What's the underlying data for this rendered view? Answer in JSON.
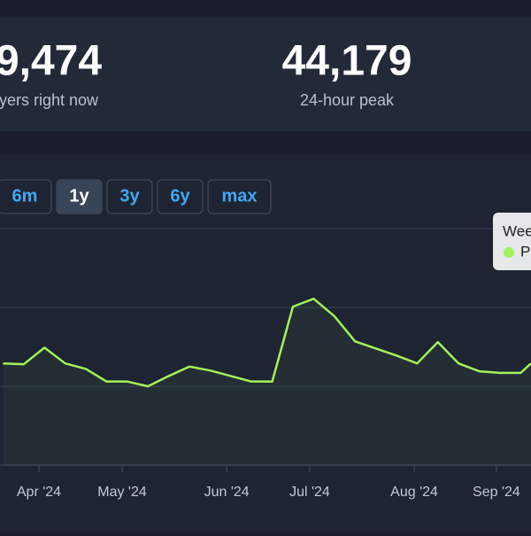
{
  "stats": [
    {
      "value": "9,474",
      "label": "yers right now"
    },
    {
      "value": "44,179",
      "label": "24-hour peak"
    }
  ],
  "ranges": [
    {
      "label": "6m",
      "active": false
    },
    {
      "label": "1y",
      "active": true
    },
    {
      "label": "3y",
      "active": false
    },
    {
      "label": "6y",
      "active": false
    },
    {
      "label": "max",
      "active": false
    }
  ],
  "tooltip": {
    "title": "Wee",
    "entry": "P"
  },
  "chart_data": {
    "type": "line",
    "x": [
      0,
      1,
      2,
      3,
      4,
      5,
      6,
      7,
      8,
      9,
      10,
      11,
      12,
      13,
      14,
      15,
      16,
      17,
      18,
      19,
      20,
      21,
      22,
      23,
      24,
      25,
      25.5
    ],
    "series": [
      {
        "color": "#a3f25a",
        "values": [
          1.29,
          1.28,
          1.49,
          1.29,
          1.22,
          1.06,
          1.06,
          1.0,
          1.13,
          1.25,
          1.2,
          1.13,
          1.06,
          1.06,
          2.01,
          2.11,
          1.89,
          1.57,
          1.48,
          1.39,
          1.29,
          1.56,
          1.29,
          1.19,
          1.17,
          1.17,
          1.29
        ]
      }
    ],
    "xlim": [
      -0.15,
      25.5
    ],
    "xticks": [
      {
        "value": 1.73,
        "label": "Apr '24"
      },
      {
        "value": 5.75,
        "label": "May '24"
      },
      {
        "value": 10.8,
        "label": "Jun '24"
      },
      {
        "value": 14.81,
        "label": "Jul '24"
      },
      {
        "value": 19.86,
        "label": "Aug '24"
      },
      {
        "value": 23.83,
        "label": "Sep '24"
      }
    ],
    "ylim": [
      0,
      3
    ],
    "yticks": [
      0,
      1,
      2,
      3
    ],
    "grid": true
  }
}
